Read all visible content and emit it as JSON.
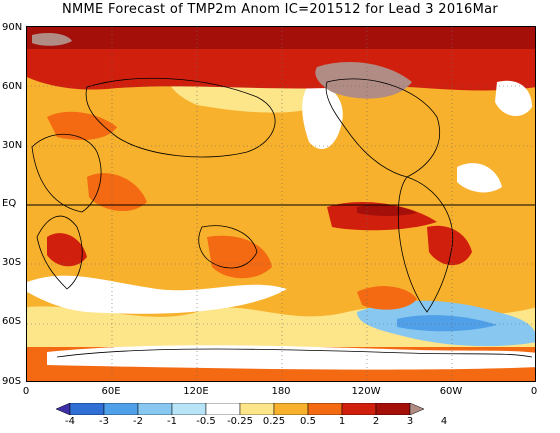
{
  "title": "NMME Forecast of TMP2m Anom IC=201512 for Lead 3 2016Mar",
  "lat_labels": [
    "90N",
    "60N",
    "30N",
    "EQ",
    "30S",
    "60S",
    "90S"
  ],
  "lon_labels": [
    "0",
    "60E",
    "120E",
    "180",
    "120W",
    "60W",
    "0"
  ],
  "colorbar": {
    "labels": [
      "-4",
      "-3",
      "-2",
      "-1",
      "-0.5",
      "-0.25",
      "0.25",
      "0.5",
      "1",
      "2",
      "3",
      "4"
    ],
    "colors": [
      "#3c2fa8",
      "#2f6fd6",
      "#4fa0e8",
      "#87c7f0",
      "#b7e4f7",
      "#ffffff",
      "#fde58a",
      "#f8b12c",
      "#f36a12",
      "#d11f0d",
      "#a50f0a",
      "#b18c84"
    ]
  },
  "map": {
    "ocean_color": "#f8b12c",
    "land_outline": "#000000",
    "equator_line": true,
    "grid": "dotted"
  }
}
